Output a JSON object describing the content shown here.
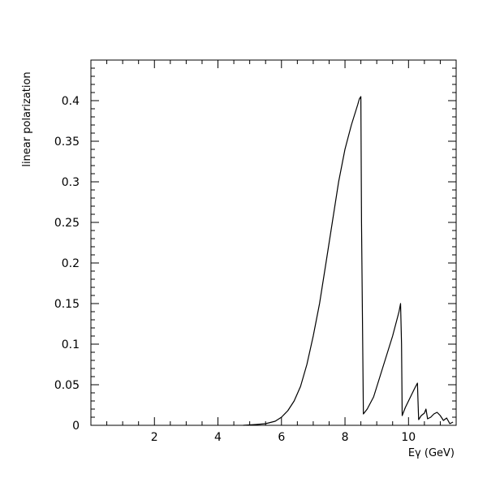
{
  "chart_data": {
    "type": "line",
    "title": "",
    "xlabel": "Eγ (GeV)",
    "ylabel": "linear polarization",
    "xlim": [
      0,
      11.5
    ],
    "ylim": [
      0,
      0.45
    ],
    "grid": false,
    "legend": "none",
    "x_ticks": [
      2,
      4,
      6,
      8,
      10
    ],
    "x_tick_labels": [
      "2",
      "4",
      "6",
      "8",
      "10"
    ],
    "y_ticks": [
      0,
      0.05,
      0.1,
      0.15,
      0.2,
      0.25,
      0.3,
      0.35,
      0.4
    ],
    "y_tick_labels": [
      "0",
      "0.05",
      "0.1",
      "0.15",
      "0.2",
      "0.25",
      "0.3",
      "0.35",
      "0.4"
    ],
    "series": [
      {
        "color": "#000000",
        "x": [
          4.8,
          5.2,
          5.5,
          5.8,
          6.0,
          6.2,
          6.4,
          6.6,
          6.8,
          7.0,
          7.2,
          7.4,
          7.6,
          7.8,
          8.0,
          8.2,
          8.4,
          8.45,
          8.5,
          8.52,
          8.58,
          8.7,
          8.9,
          9.1,
          9.3,
          9.5,
          9.7,
          9.75,
          9.78,
          9.8,
          9.9,
          10.0,
          10.1,
          10.2,
          10.28,
          10.3,
          10.32,
          10.4,
          10.5,
          10.55,
          10.6,
          10.7,
          10.8,
          10.9,
          11.0,
          11.1,
          11.2,
          11.3,
          11.4
        ],
        "y": [
          0.0,
          0.001,
          0.002,
          0.005,
          0.01,
          0.018,
          0.03,
          0.048,
          0.075,
          0.11,
          0.15,
          0.2,
          0.25,
          0.3,
          0.34,
          0.37,
          0.395,
          0.402,
          0.405,
          0.25,
          0.014,
          0.02,
          0.035,
          0.06,
          0.085,
          0.11,
          0.14,
          0.15,
          0.1,
          0.012,
          0.022,
          0.03,
          0.038,
          0.046,
          0.052,
          0.03,
          0.007,
          0.012,
          0.015,
          0.02,
          0.008,
          0.01,
          0.014,
          0.016,
          0.012,
          0.006,
          0.009,
          0.002,
          0.004
        ]
      }
    ]
  }
}
